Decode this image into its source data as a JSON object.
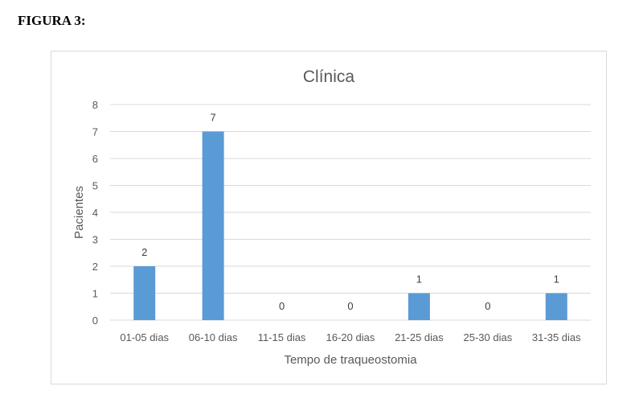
{
  "figure_label": "FIGURA 3:",
  "chart_data": {
    "type": "bar",
    "title": "Clínica",
    "xlabel": "Tempo de traqueostomia",
    "ylabel": "Pacientes",
    "categories": [
      "01-05 dias",
      "06-10 dias",
      "11-15 dias",
      "16-20 dias",
      "21-25 dias",
      "25-30 dias",
      "31-35 dias"
    ],
    "values": [
      2,
      7,
      0,
      0,
      1,
      0,
      1
    ],
    "ylim": [
      0,
      8
    ],
    "yticks": [
      0,
      1,
      2,
      3,
      4,
      5,
      6,
      7,
      8
    ],
    "grid": true,
    "legend": "none",
    "bar_color": "#5b9bd5",
    "grid_color": "#d9d9d9",
    "text_color": "#595959"
  }
}
